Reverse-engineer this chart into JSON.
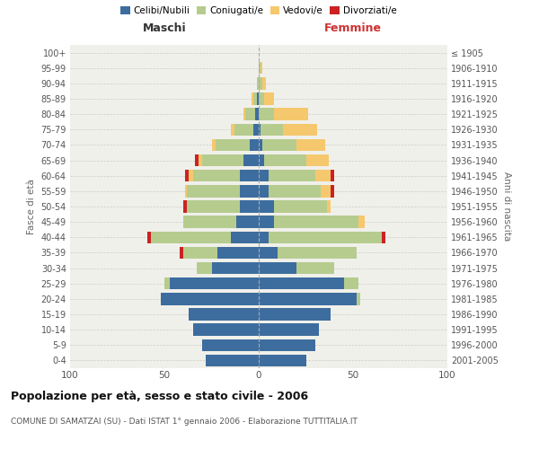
{
  "age_groups": [
    "0-4",
    "5-9",
    "10-14",
    "15-19",
    "20-24",
    "25-29",
    "30-34",
    "35-39",
    "40-44",
    "45-49",
    "50-54",
    "55-59",
    "60-64",
    "65-69",
    "70-74",
    "75-79",
    "80-84",
    "85-89",
    "90-94",
    "95-99",
    "100+"
  ],
  "birth_years": [
    "2001-2005",
    "1996-2000",
    "1991-1995",
    "1986-1990",
    "1981-1985",
    "1976-1980",
    "1971-1975",
    "1966-1970",
    "1961-1965",
    "1956-1960",
    "1951-1955",
    "1946-1950",
    "1941-1945",
    "1936-1940",
    "1931-1935",
    "1926-1930",
    "1921-1925",
    "1916-1920",
    "1911-1915",
    "1906-1910",
    "≤ 1905"
  ],
  "male": {
    "celibi": [
      28,
      30,
      35,
      37,
      52,
      47,
      25,
      22,
      15,
      12,
      10,
      10,
      10,
      8,
      5,
      3,
      2,
      1,
      0,
      0,
      0
    ],
    "coniugati": [
      0,
      0,
      0,
      0,
      0,
      3,
      8,
      18,
      42,
      28,
      28,
      28,
      25,
      22,
      18,
      10,
      5,
      2,
      1,
      0,
      0
    ],
    "vedovi": [
      0,
      0,
      0,
      0,
      0,
      0,
      0,
      0,
      0,
      0,
      0,
      1,
      2,
      2,
      2,
      2,
      1,
      1,
      0,
      0,
      0
    ],
    "divorziati": [
      0,
      0,
      0,
      0,
      0,
      0,
      0,
      2,
      2,
      0,
      2,
      0,
      2,
      2,
      0,
      0,
      0,
      0,
      0,
      0,
      0
    ]
  },
  "female": {
    "nubili": [
      25,
      30,
      32,
      38,
      52,
      45,
      20,
      10,
      5,
      8,
      8,
      5,
      5,
      3,
      2,
      1,
      0,
      0,
      0,
      0,
      0
    ],
    "coniugate": [
      0,
      0,
      0,
      0,
      2,
      8,
      20,
      42,
      60,
      45,
      28,
      28,
      25,
      22,
      18,
      12,
      8,
      3,
      2,
      1,
      0
    ],
    "vedove": [
      0,
      0,
      0,
      0,
      0,
      0,
      0,
      0,
      0,
      3,
      2,
      5,
      8,
      12,
      15,
      18,
      18,
      5,
      2,
      1,
      0
    ],
    "divorziate": [
      0,
      0,
      0,
      0,
      0,
      0,
      0,
      0,
      2,
      0,
      0,
      2,
      2,
      0,
      0,
      0,
      0,
      0,
      0,
      0,
      0
    ]
  },
  "colors": {
    "celibi": "#3d6d9e",
    "coniugati": "#b5cc8e",
    "vedovi": "#f5c86e",
    "divorziati": "#cc2222"
  },
  "xlim": 100,
  "title": "Popolazione per età, sesso e stato civile - 2006",
  "subtitle": "COMUNE DI SAMATZAI (SU) - Dati ISTAT 1° gennaio 2006 - Elaborazione TUTTITALIA.IT",
  "ylabel_left": "Fasce di età",
  "ylabel_right": "Anni di nascita",
  "xlabel_left": "Maschi",
  "xlabel_right": "Femmine",
  "bg_color": "#f0f0eb",
  "grid_color": "#cccccc",
  "legend_labels": [
    "Celibi/Nubili",
    "Coniugati/e",
    "Vedovi/e",
    "Divorziati/e"
  ]
}
